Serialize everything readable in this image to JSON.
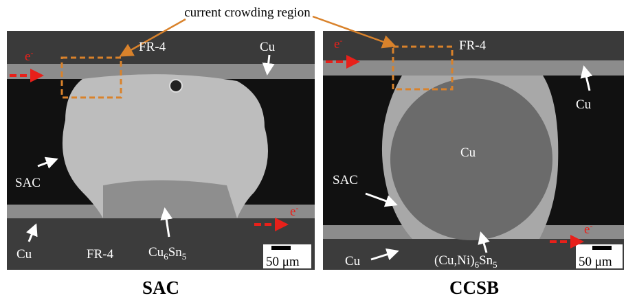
{
  "annotation": "current crowding region",
  "panels": [
    {
      "caption": "SAC",
      "labels": {
        "fr4_top": "FR-4",
        "cu_top": "Cu",
        "e_top": [
          "e",
          "-"
        ],
        "e_bottom": [
          "e",
          "-"
        ],
        "sac": "SAC",
        "cu_bottom": "Cu",
        "fr4_bottom": "FR-4",
        "imc": [
          "Cu",
          "6",
          "Sn",
          "5"
        ],
        "scale": "50 μm"
      }
    },
    {
      "caption": "CCSB",
      "labels": {
        "fr4_top": "FR-4",
        "cu_top": "Cu",
        "e_top": [
          "e",
          "-"
        ],
        "e_bottom": [
          "e",
          "-"
        ],
        "core": "Cu",
        "sac": "SAC",
        "cu_bottom": "Cu",
        "imc": [
          "(Cu,Ni)",
          "6",
          "Sn",
          "5"
        ],
        "scale": "50 μm"
      }
    }
  ]
}
